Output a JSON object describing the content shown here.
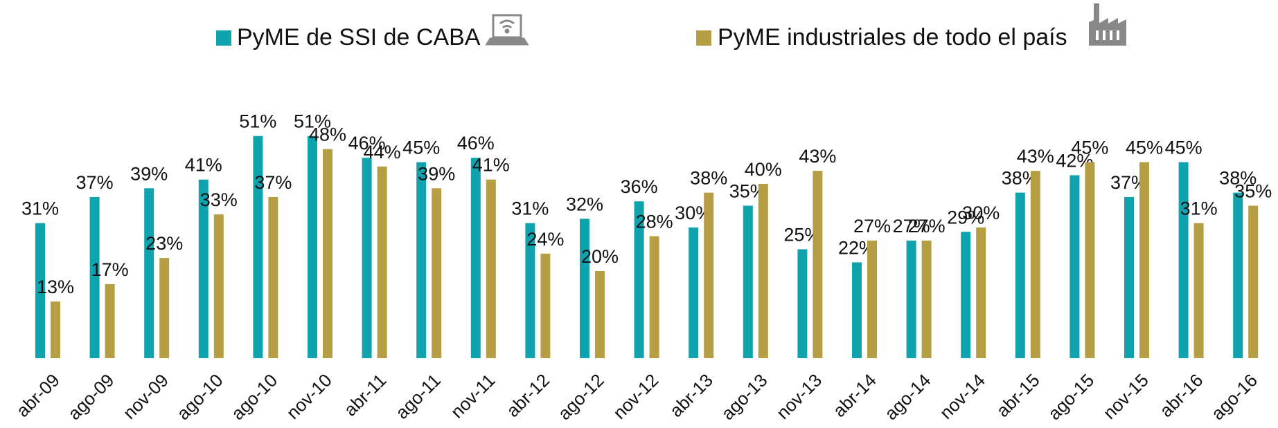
{
  "chart_data": {
    "type": "bar",
    "categories": [
      "abr-09",
      "ago-09",
      "nov-09",
      "ago-10",
      "ago-10",
      "nov-10",
      "abr-11",
      "ago-11",
      "nov-11",
      "abr-12",
      "ago-12",
      "nov-12",
      "abr-13",
      "ago-13",
      "nov-13",
      "abr-14",
      "ago-14",
      "nov-14",
      "abr-15",
      "ago-15",
      "nov-15",
      "abr-16",
      "ago-16"
    ],
    "series": [
      {
        "name": "PyME de SSI de CABA",
        "color": "#10a3ae",
        "values": [
          31,
          37,
          39,
          41,
          51,
          51,
          46,
          45,
          46,
          31,
          32,
          36,
          30,
          35,
          25,
          22,
          27,
          29,
          38,
          42,
          37,
          45,
          38
        ],
        "value_labels": [
          "31%",
          "37%",
          "39%",
          "41%",
          "51%",
          "51%",
          "46%",
          "45%",
          "46%",
          "31%",
          "32%",
          "36%",
          "30%",
          "35%",
          "25%",
          "22%",
          "27%",
          "29%",
          "38%",
          "42%",
          "37%",
          "45%",
          "38%"
        ]
      },
      {
        "name": "PyME industriales de todo el país",
        "color": "#b59e44",
        "values": [
          13,
          17,
          23,
          33,
          37,
          48,
          44,
          39,
          41,
          24,
          20,
          28,
          38,
          40,
          43,
          27,
          27,
          30,
          43,
          45,
          45,
          31,
          35
        ],
        "value_labels": [
          "13%",
          "17%",
          "23%",
          "33%",
          "37%",
          "48%",
          "44%",
          "39%",
          "41%",
          "24%",
          "20%",
          "28%",
          "38%",
          "40%",
          "43%",
          "27%",
          "27%",
          "30%",
          "43%",
          "45%",
          "45%",
          "31%",
          "35%"
        ]
      }
    ]
  }
}
